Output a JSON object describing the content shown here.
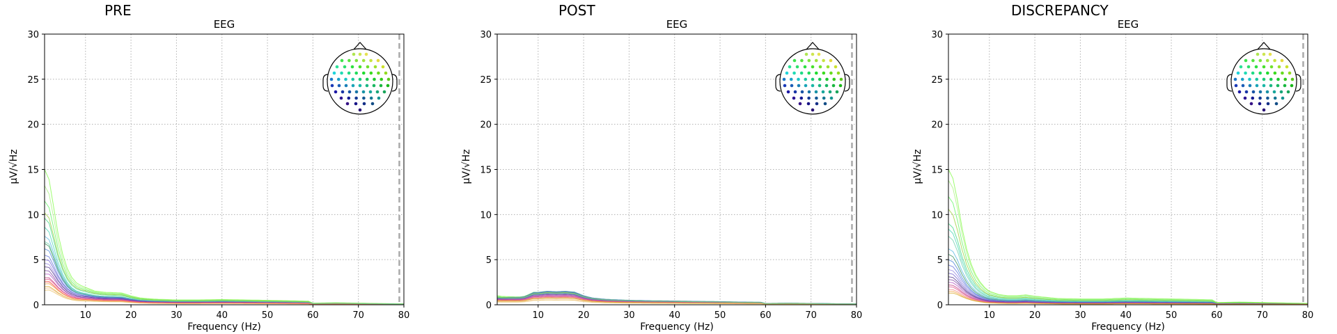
{
  "chart_data": [
    {
      "type": "line",
      "title": "PRE",
      "subtitle": "EEG",
      "xlabel": "Frequency (Hz)",
      "ylabel": "µV/√Hz",
      "xlim": [
        1,
        80
      ],
      "ylim": [
        0,
        30
      ],
      "xticks": [
        10,
        20,
        30,
        40,
        50,
        60,
        70,
        80
      ],
      "yticks": [
        0,
        5,
        10,
        15,
        20,
        25,
        30
      ],
      "grid": true,
      "cutoff_hz": 79,
      "legend": "sensor-layout inset, top-right",
      "profile": {
        "x": [
          1,
          2,
          3,
          4,
          5,
          6,
          7,
          8,
          9,
          10,
          12,
          14,
          16,
          18,
          20,
          22,
          25,
          30,
          35,
          40,
          45,
          50,
          55,
          59,
          60,
          65,
          70,
          75,
          80
        ],
        "y": [
          15,
          14,
          11,
          8,
          5.8,
          4.2,
          3.2,
          2.6,
          2.3,
          2.1,
          1.7,
          1.55,
          1.5,
          1.45,
          1.1,
          0.85,
          0.7,
          0.6,
          0.6,
          0.65,
          0.6,
          0.55,
          0.5,
          0.45,
          0.2,
          0.25,
          0.2,
          0.15,
          0.12
        ]
      },
      "series": [
        {
          "color": "#7cfc3f",
          "peak": 15.0,
          "tail": 0.9
        },
        {
          "color": "#a6f27a",
          "peak": 13.2,
          "tail": 0.85
        },
        {
          "color": "#5af55a",
          "peak": 11.5,
          "tail": 0.8
        },
        {
          "color": "#3ad67f",
          "peak": 9.6,
          "tail": 0.7
        },
        {
          "color": "#3fd4b4",
          "peak": 8.6,
          "tail": 0.6
        },
        {
          "color": "#4cb3e0",
          "peak": 7.6,
          "tail": 0.6
        },
        {
          "color": "#2e8b57",
          "peak": 6.8,
          "tail": 0.55
        },
        {
          "color": "#3d7fd6",
          "peak": 6.2,
          "tail": 0.55
        },
        {
          "color": "#5b6fd9",
          "peak": 5.5,
          "tail": 0.5
        },
        {
          "color": "#6a5acd",
          "peak": 5.0,
          "tail": 0.5
        },
        {
          "color": "#8f7fe0",
          "peak": 4.6,
          "tail": 0.45
        },
        {
          "color": "#4b2c8a",
          "peak": 4.2,
          "tail": 0.45
        },
        {
          "color": "#7a3fa0",
          "peak": 3.8,
          "tail": 0.4
        },
        {
          "color": "#b04fc0",
          "peak": 3.4,
          "tail": 0.4
        },
        {
          "color": "#c0307a",
          "peak": 3.0,
          "tail": 0.35
        },
        {
          "color": "#e0508a",
          "peak": 2.8,
          "tail": 0.35
        },
        {
          "color": "#f08080",
          "peak": 2.5,
          "tail": 0.3
        },
        {
          "color": "#f0a040",
          "peak": 2.3,
          "tail": 0.3
        },
        {
          "color": "#d4a017",
          "peak": 2.0,
          "tail": 0.25
        },
        {
          "color": "#f4c39a",
          "peak": 1.8,
          "tail": 0.25
        },
        {
          "color": "#e8c060",
          "peak": 1.6,
          "tail": 0.22
        },
        {
          "color": "#ff6f61",
          "peak": 2.6,
          "tail": 0.3
        },
        {
          "color": "#9acd32",
          "peak": 10.2,
          "tail": 0.75
        },
        {
          "color": "#66cdaa",
          "peak": 7.0,
          "tail": 0.6
        }
      ]
    },
    {
      "type": "line",
      "title": "POST",
      "subtitle": "EEG",
      "xlabel": "Frequency (Hz)",
      "ylabel": "µV/√Hz",
      "xlim": [
        1,
        80
      ],
      "ylim": [
        0,
        30
      ],
      "xticks": [
        10,
        20,
        30,
        40,
        50,
        60,
        70,
        80
      ],
      "yticks": [
        0,
        5,
        10,
        15,
        20,
        25,
        30
      ],
      "grid": true,
      "cutoff_hz": 79,
      "legend": "sensor-layout inset, top-right",
      "profile": {
        "x": [
          1,
          2,
          3,
          4,
          5,
          6,
          7,
          8,
          9,
          10,
          12,
          14,
          16,
          18,
          20,
          22,
          25,
          30,
          35,
          40,
          45,
          50,
          55,
          59,
          60,
          65,
          70,
          75,
          80
        ],
        "y": [
          4.2,
          3.0,
          2.4,
          2.0,
          1.7,
          1.5,
          1.45,
          1.6,
          1.75,
          1.6,
          1.5,
          1.45,
          1.5,
          1.4,
          1.0,
          0.75,
          0.6,
          0.5,
          0.45,
          0.42,
          0.38,
          0.35,
          0.3,
          0.28,
          0.15,
          0.18,
          0.15,
          0.12,
          0.1
        ]
      },
      "series": [
        {
          "color": "#7cfc3f",
          "peak": 1.0,
          "tail": 1.0
        },
        {
          "color": "#5af55a",
          "peak": 0.9,
          "tail": 0.95
        },
        {
          "color": "#3ad67f",
          "peak": 0.85,
          "tail": 0.9
        },
        {
          "color": "#2e8b57",
          "peak": 0.8,
          "tail": 0.95
        },
        {
          "color": "#3d7fd6",
          "peak": 0.78,
          "tail": 1.0
        },
        {
          "color": "#4cb3e0",
          "peak": 0.75,
          "tail": 0.9
        },
        {
          "color": "#5b6fd9",
          "peak": 0.72,
          "tail": 0.95
        },
        {
          "color": "#6a5acd",
          "peak": 0.7,
          "tail": 0.85
        },
        {
          "color": "#4b2c8a",
          "peak": 0.68,
          "tail": 0.8
        },
        {
          "color": "#7a3fa0",
          "peak": 0.62,
          "tail": 0.75
        },
        {
          "color": "#b04fc0",
          "peak": 0.6,
          "tail": 0.7
        },
        {
          "color": "#c0307a",
          "peak": 0.55,
          "tail": 0.65
        },
        {
          "color": "#e0508a",
          "peak": 0.52,
          "tail": 0.6
        },
        {
          "color": "#f08080",
          "peak": 0.5,
          "tail": 0.55
        },
        {
          "color": "#f0a040",
          "peak": 0.46,
          "tail": 0.5
        },
        {
          "color": "#d4a017",
          "peak": 0.42,
          "tail": 0.5
        },
        {
          "color": "#f4c39a",
          "peak": 0.35,
          "tail": 0.4
        },
        {
          "color": "#e8c060",
          "peak": 0.3,
          "tail": 0.35
        },
        {
          "color": "#9acd32",
          "peak": 0.82,
          "tail": 0.9
        },
        {
          "color": "#66cdaa",
          "peak": 0.74,
          "tail": 0.85
        }
      ]
    },
    {
      "type": "line",
      "title": "DISCREPANCY",
      "subtitle": "EEG",
      "xlabel": "Frequency (Hz)",
      "ylabel": "µV/√Hz",
      "xlim": [
        1,
        80
      ],
      "ylim": [
        0,
        30
      ],
      "xticks": [
        10,
        20,
        30,
        40,
        50,
        60,
        70,
        80
      ],
      "yticks": [
        0,
        5,
        10,
        15,
        20,
        25,
        30
      ],
      "grid": true,
      "cutoff_hz": 79,
      "legend": "sensor-layout inset, top-right",
      "profile": {
        "x": [
          1,
          2,
          3,
          4,
          5,
          6,
          7,
          8,
          9,
          10,
          12,
          14,
          16,
          18,
          20,
          22,
          25,
          30,
          35,
          40,
          45,
          50,
          55,
          59,
          60,
          65,
          70,
          75,
          80
        ],
        "y": [
          15,
          14,
          11.5,
          8.5,
          6.2,
          4.5,
          3.3,
          2.5,
          1.9,
          1.5,
          1.15,
          1.0,
          1.0,
          1.1,
          0.95,
          0.85,
          0.7,
          0.65,
          0.65,
          0.75,
          0.7,
          0.65,
          0.6,
          0.55,
          0.25,
          0.3,
          0.25,
          0.2,
          0.15
        ]
      },
      "series": [
        {
          "color": "#7cfc3f",
          "peak": 15.0,
          "tail": 1.0
        },
        {
          "color": "#a6f27a",
          "peak": 13.8,
          "tail": 0.95
        },
        {
          "color": "#5af55a",
          "peak": 12.0,
          "tail": 0.85
        },
        {
          "color": "#3ad67f",
          "peak": 9.0,
          "tail": 0.7
        },
        {
          "color": "#3fd4b4",
          "peak": 8.4,
          "tail": 0.6
        },
        {
          "color": "#66cdaa",
          "peak": 7.6,
          "tail": 0.55
        },
        {
          "color": "#4cb3e0",
          "peak": 6.2,
          "tail": 0.5
        },
        {
          "color": "#2e8b57",
          "peak": 5.6,
          "tail": 0.45
        },
        {
          "color": "#3d7fd6",
          "peak": 5.0,
          "tail": 0.4
        },
        {
          "color": "#5b6fd9",
          "peak": 4.4,
          "tail": 0.38
        },
        {
          "color": "#8f7fe0",
          "peak": 3.9,
          "tail": 0.35
        },
        {
          "color": "#6a5acd",
          "peak": 3.5,
          "tail": 0.32
        },
        {
          "color": "#4b2c8a",
          "peak": 3.1,
          "tail": 0.3
        },
        {
          "color": "#7a3fa0",
          "peak": 2.8,
          "tail": 0.28
        },
        {
          "color": "#b04fc0",
          "peak": 2.5,
          "tail": 0.25
        },
        {
          "color": "#c0307a",
          "peak": 2.2,
          "tail": 0.22
        },
        {
          "color": "#e0508a",
          "peak": 2.0,
          "tail": 0.2
        },
        {
          "color": "#f08080",
          "peak": 1.7,
          "tail": 0.18
        },
        {
          "color": "#f0a040",
          "peak": 1.5,
          "tail": 0.16
        },
        {
          "color": "#d4a017",
          "peak": 1.3,
          "tail": 0.15
        },
        {
          "color": "#9acd32",
          "peak": 10.6,
          "tail": 0.75
        }
      ]
    }
  ]
}
